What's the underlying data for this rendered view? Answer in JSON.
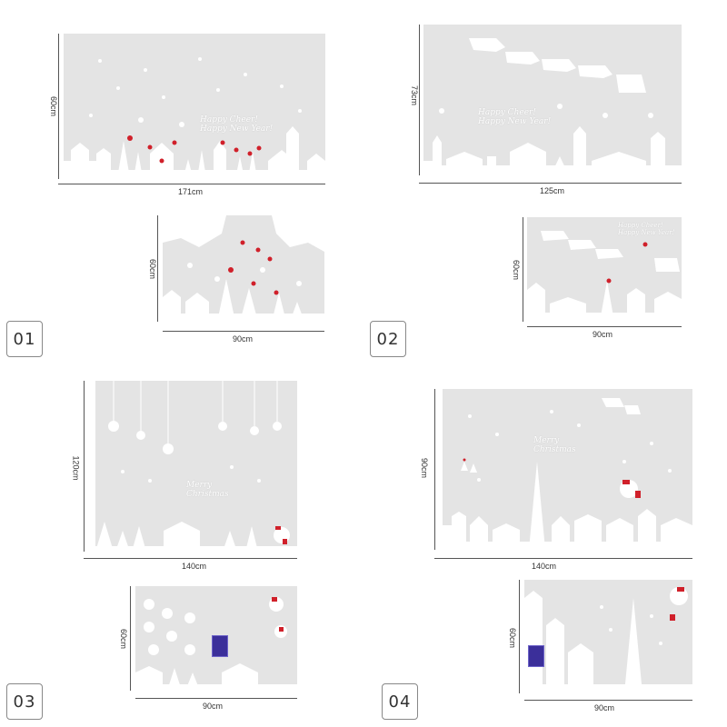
{
  "products": [
    {
      "number": "01",
      "large_width": "171cm",
      "large_height": "60cm",
      "small_width": "90cm",
      "small_height": "60cm",
      "greeting_line1": "Happy Cheer!",
      "greeting_line2": "Happy New Year!"
    },
    {
      "number": "02",
      "large_width": "125cm",
      "large_height": "73cm",
      "small_width": "90cm",
      "small_height": "60cm",
      "greeting_line1": "Happy Cheer!",
      "greeting_line2": "Happy New Year!"
    },
    {
      "number": "03",
      "large_width": "140cm",
      "large_height": "120cm",
      "small_width": "90cm",
      "small_height": "60cm",
      "greeting_line1": "Merry",
      "greeting_line2": "Christmas"
    },
    {
      "number": "04",
      "large_width": "140cm",
      "large_height": "90cm",
      "small_width": "90cm",
      "small_height": "60cm",
      "greeting_line1": "Merry",
      "greeting_line2": "Christmas"
    }
  ],
  "colors": {
    "panel": "#e4e4e4",
    "decal": "#ffffff",
    "star": "#d0202a",
    "tag": "#3b2f9a"
  }
}
